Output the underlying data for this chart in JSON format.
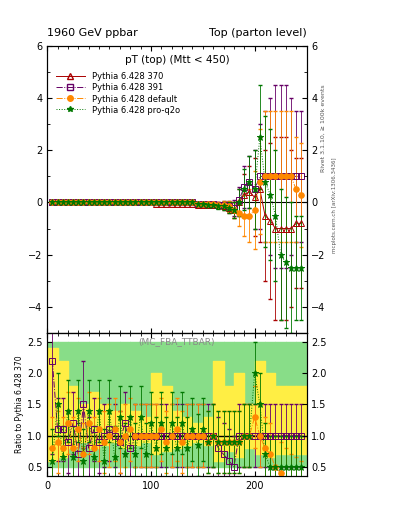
{
  "title_left": "1960 GeV ppbar",
  "title_right": "Top (parton level)",
  "main_title": "pT (top) (Mtt < 450)",
  "watermark": "(MC_FBA_TTBAR)",
  "rivet_label": "Rivet 3.1.10, ≥ 100k events",
  "mcplots_label": "mcplots.cern.ch [arXiv:1306.3436]",
  "ylabel_ratio": "Ratio to Pythia 6.428 370",
  "ylim_main": [
    -5,
    6
  ],
  "ylim_ratio": [
    0.35,
    2.65
  ],
  "yticks_main": [
    -4,
    -2,
    0,
    2,
    4,
    6
  ],
  "yticks_ratio": [
    0.5,
    1.0,
    1.5,
    2.0,
    2.5
  ],
  "xlim": [
    0,
    250
  ],
  "xticks": [
    0,
    100,
    200
  ],
  "series": [
    {
      "label": "Pythia 6.428 370",
      "color": "#aa0000",
      "marker": "^",
      "linestyle": "-",
      "markersize": 4,
      "fillstyle": "none",
      "x": [
        5,
        10,
        15,
        20,
        25,
        30,
        35,
        40,
        45,
        50,
        55,
        60,
        65,
        70,
        75,
        80,
        85,
        90,
        95,
        100,
        105,
        110,
        115,
        120,
        125,
        130,
        135,
        140,
        145,
        150,
        155,
        160,
        165,
        170,
        175,
        180,
        185,
        190,
        195,
        200,
        205,
        210,
        215,
        220,
        225,
        230,
        235,
        240,
        245
      ],
      "y": [
        0.0,
        0.0,
        0.0,
        0.0,
        0.0,
        0.0,
        0.0,
        0.0,
        0.0,
        0.0,
        0.0,
        0.0,
        0.0,
        0.0,
        0.0,
        0.0,
        0.0,
        0.0,
        0.0,
        0.0,
        -0.05,
        -0.05,
        -0.05,
        -0.05,
        -0.05,
        -0.05,
        -0.05,
        -0.05,
        -0.1,
        -0.1,
        -0.1,
        -0.1,
        -0.1,
        -0.15,
        -0.2,
        -0.3,
        0.0,
        0.3,
        0.4,
        0.2,
        0.5,
        -0.5,
        -0.7,
        -1.0,
        -1.0,
        -1.0,
        -1.0,
        -0.8,
        -0.8
      ],
      "yerr": [
        0.02,
        0.02,
        0.02,
        0.02,
        0.02,
        0.02,
        0.02,
        0.02,
        0.02,
        0.02,
        0.02,
        0.02,
        0.02,
        0.02,
        0.02,
        0.02,
        0.02,
        0.02,
        0.02,
        0.02,
        0.05,
        0.05,
        0.05,
        0.05,
        0.05,
        0.05,
        0.05,
        0.05,
        0.08,
        0.08,
        0.08,
        0.08,
        0.1,
        0.15,
        0.2,
        0.3,
        0.5,
        0.8,
        1.0,
        1.5,
        2.0,
        2.5,
        3.0,
        3.5,
        3.5,
        3.5,
        3.0,
        2.5,
        2.5
      ]
    },
    {
      "label": "Pythia 6.428 391",
      "color": "#660066",
      "marker": "s",
      "linestyle": "-.",
      "markersize": 4,
      "fillstyle": "none",
      "x": [
        5,
        10,
        15,
        20,
        25,
        30,
        35,
        40,
        45,
        50,
        55,
        60,
        65,
        70,
        75,
        80,
        85,
        90,
        95,
        100,
        105,
        110,
        115,
        120,
        125,
        130,
        135,
        140,
        145,
        150,
        155,
        160,
        165,
        170,
        175,
        180,
        185,
        190,
        195,
        200,
        205,
        210,
        215,
        220,
        225,
        230,
        235,
        240,
        245
      ],
      "y": [
        0.0,
        0.0,
        0.0,
        0.0,
        0.0,
        0.0,
        0.0,
        0.0,
        0.0,
        0.0,
        0.0,
        0.0,
        0.0,
        0.0,
        0.0,
        0.0,
        0.0,
        0.0,
        0.0,
        0.0,
        0.0,
        0.0,
        0.0,
        0.0,
        0.0,
        0.0,
        0.0,
        0.0,
        -0.05,
        -0.05,
        -0.05,
        -0.05,
        -0.1,
        -0.1,
        -0.15,
        -0.2,
        0.1,
        0.6,
        0.8,
        0.5,
        1.0,
        1.0,
        1.0,
        1.0,
        1.0,
        1.0,
        1.0,
        1.0,
        1.0
      ],
      "yerr": [
        0.02,
        0.02,
        0.02,
        0.02,
        0.02,
        0.02,
        0.02,
        0.02,
        0.02,
        0.02,
        0.02,
        0.02,
        0.02,
        0.02,
        0.02,
        0.02,
        0.02,
        0.02,
        0.02,
        0.02,
        0.05,
        0.05,
        0.05,
        0.05,
        0.05,
        0.05,
        0.05,
        0.05,
        0.08,
        0.08,
        0.08,
        0.08,
        0.1,
        0.15,
        0.2,
        0.3,
        0.5,
        0.8,
        1.0,
        1.5,
        2.0,
        2.5,
        3.0,
        3.5,
        3.5,
        3.5,
        3.0,
        2.5,
        2.5
      ]
    },
    {
      "label": "Pythia 6.428 default",
      "color": "#ff8800",
      "marker": "o",
      "linestyle": "-.",
      "markersize": 4,
      "fillstyle": "full",
      "x": [
        5,
        10,
        15,
        20,
        25,
        30,
        35,
        40,
        45,
        50,
        55,
        60,
        65,
        70,
        75,
        80,
        85,
        90,
        95,
        100,
        105,
        110,
        115,
        120,
        125,
        130,
        135,
        140,
        145,
        150,
        155,
        160,
        165,
        170,
        175,
        180,
        185,
        190,
        195,
        200,
        205,
        210,
        215,
        220,
        225,
        230,
        235,
        240,
        245
      ],
      "y": [
        0.0,
        0.0,
        0.0,
        0.0,
        0.0,
        0.0,
        0.0,
        0.0,
        0.0,
        0.0,
        0.0,
        0.0,
        0.0,
        0.0,
        0.0,
        0.0,
        0.0,
        0.0,
        0.0,
        0.0,
        0.0,
        0.0,
        0.0,
        0.0,
        0.0,
        0.0,
        0.0,
        0.0,
        -0.05,
        -0.05,
        -0.05,
        -0.05,
        -0.1,
        -0.1,
        -0.15,
        -0.3,
        -0.4,
        -0.5,
        -0.5,
        -0.3,
        0.8,
        1.0,
        1.0,
        1.0,
        1.0,
        1.0,
        1.0,
        0.5,
        0.3
      ],
      "yerr": [
        0.02,
        0.02,
        0.02,
        0.02,
        0.02,
        0.02,
        0.02,
        0.02,
        0.02,
        0.02,
        0.02,
        0.02,
        0.02,
        0.02,
        0.02,
        0.02,
        0.02,
        0.02,
        0.02,
        0.02,
        0.05,
        0.05,
        0.05,
        0.05,
        0.05,
        0.05,
        0.05,
        0.05,
        0.08,
        0.08,
        0.08,
        0.08,
        0.1,
        0.15,
        0.2,
        0.3,
        0.5,
        0.8,
        1.0,
        1.5,
        2.0,
        2.5,
        2.5,
        2.5,
        2.5,
        2.5,
        2.5,
        2.0,
        2.0
      ]
    },
    {
      "label": "Pythia 6.428 pro-q2o",
      "color": "#007700",
      "marker": "*",
      "linestyle": ":",
      "markersize": 5,
      "fillstyle": "full",
      "x": [
        5,
        10,
        15,
        20,
        25,
        30,
        35,
        40,
        45,
        50,
        55,
        60,
        65,
        70,
        75,
        80,
        85,
        90,
        95,
        100,
        105,
        110,
        115,
        120,
        125,
        130,
        135,
        140,
        145,
        150,
        155,
        160,
        165,
        170,
        175,
        180,
        185,
        190,
        195,
        200,
        205,
        210,
        215,
        220,
        225,
        230,
        235,
        240,
        245
      ],
      "y": [
        0.0,
        0.0,
        0.0,
        0.0,
        0.0,
        0.0,
        0.0,
        0.0,
        0.0,
        0.0,
        0.0,
        0.0,
        0.0,
        0.0,
        0.0,
        0.0,
        0.0,
        0.0,
        0.0,
        0.0,
        0.0,
        0.0,
        0.0,
        0.0,
        0.0,
        0.0,
        0.0,
        0.0,
        -0.05,
        -0.05,
        -0.1,
        -0.1,
        -0.15,
        -0.15,
        -0.2,
        -0.3,
        0.0,
        0.5,
        0.8,
        0.5,
        2.5,
        0.8,
        0.3,
        -0.5,
        -2.0,
        -2.3,
        -2.5,
        -2.5,
        -2.5
      ],
      "yerr": [
        0.02,
        0.02,
        0.02,
        0.02,
        0.02,
        0.02,
        0.02,
        0.02,
        0.02,
        0.02,
        0.02,
        0.02,
        0.02,
        0.02,
        0.02,
        0.02,
        0.02,
        0.02,
        0.02,
        0.02,
        0.05,
        0.05,
        0.05,
        0.05,
        0.05,
        0.05,
        0.05,
        0.05,
        0.08,
        0.08,
        0.08,
        0.08,
        0.1,
        0.15,
        0.2,
        0.3,
        0.5,
        0.8,
        1.0,
        1.5,
        2.0,
        2.5,
        2.5,
        2.5,
        2.5,
        2.5,
        2.5,
        2.0,
        2.0
      ]
    }
  ],
  "ratio_391_x": [
    5,
    10,
    15,
    20,
    25,
    30,
    35,
    40,
    45,
    50,
    55,
    60,
    65,
    70,
    75,
    80,
    85,
    90,
    95,
    100,
    105,
    110,
    115,
    120,
    125,
    130,
    135,
    140,
    145,
    150,
    155,
    160,
    165,
    170,
    175,
    180,
    185,
    190,
    195,
    200,
    205,
    210,
    215,
    220,
    225,
    230,
    235,
    240,
    245
  ],
  "ratio_391_y": [
    2.2,
    1.1,
    1.1,
    0.9,
    1.2,
    0.7,
    1.5,
    0.8,
    1.1,
    0.9,
    1.0,
    1.1,
    1.0,
    0.9,
    1.2,
    0.8,
    1.0,
    1.0,
    1.0,
    1.0,
    1.0,
    1.0,
    1.0,
    1.0,
    1.0,
    1.0,
    1.0,
    1.0,
    1.0,
    1.0,
    1.0,
    1.0,
    0.8,
    0.7,
    0.6,
    0.5,
    1.0,
    1.0,
    1.0,
    1.0,
    1.0,
    1.0,
    1.0,
    1.0,
    1.0,
    1.0,
    1.0,
    1.0,
    1.0
  ],
  "ratio_391_yerr": [
    1.5,
    0.5,
    0.5,
    0.5,
    0.5,
    0.5,
    0.7,
    0.5,
    0.5,
    0.5,
    0.5,
    0.5,
    0.5,
    0.5,
    0.5,
    0.5,
    0.5,
    0.5,
    0.5,
    0.5,
    0.5,
    0.5,
    0.5,
    0.5,
    0.5,
    0.5,
    0.5,
    0.5,
    0.5,
    0.5,
    0.5,
    0.5,
    0.5,
    0.5,
    0.5,
    0.5,
    0.5,
    0.5,
    0.5,
    0.5,
    0.5,
    0.5,
    0.5,
    0.5,
    0.5,
    0.5,
    0.5,
    0.5,
    0.5
  ],
  "ratio_def_x": [
    5,
    10,
    15,
    20,
    25,
    30,
    35,
    40,
    45,
    50,
    55,
    60,
    65,
    70,
    75,
    80,
    85,
    90,
    95,
    100,
    105,
    110,
    115,
    120,
    125,
    130,
    135,
    140,
    145,
    150,
    155,
    160,
    165,
    170,
    175,
    180,
    185,
    190,
    195,
    200,
    205,
    210,
    215,
    220,
    225,
    230,
    235,
    240,
    245
  ],
  "ratio_def_y": [
    0.8,
    0.9,
    0.8,
    1.2,
    0.8,
    1.1,
    0.7,
    1.2,
    0.8,
    1.1,
    0.9,
    1.0,
    1.1,
    0.9,
    1.0,
    1.1,
    1.0,
    1.0,
    1.0,
    1.0,
    1.0,
    1.1,
    0.9,
    1.0,
    1.1,
    0.9,
    1.0,
    1.0,
    1.0,
    1.0,
    0.9,
    1.0,
    0.9,
    0.9,
    0.9,
    0.9,
    0.9,
    1.0,
    1.0,
    1.3,
    1.0,
    0.8,
    0.7,
    0.5,
    0.4,
    0.3,
    0.2,
    0.15,
    0.1
  ],
  "ratio_def_yerr": [
    0.5,
    0.5,
    0.5,
    0.5,
    0.5,
    0.5,
    0.5,
    0.5,
    0.5,
    0.5,
    0.5,
    0.5,
    0.5,
    0.5,
    0.5,
    0.5,
    0.5,
    0.5,
    0.5,
    0.5,
    0.5,
    0.5,
    0.5,
    0.5,
    0.5,
    0.5,
    0.5,
    0.5,
    0.5,
    0.5,
    0.5,
    0.5,
    0.5,
    0.5,
    0.5,
    0.5,
    0.5,
    0.5,
    0.5,
    0.5,
    0.5,
    0.5,
    0.5,
    0.5,
    0.5,
    0.5,
    0.5,
    0.5,
    0.5
  ],
  "ratio_q2o_x": [
    5,
    10,
    15,
    20,
    25,
    30,
    35,
    40,
    45,
    50,
    55,
    60,
    65,
    70,
    75,
    80,
    85,
    90,
    95,
    100,
    105,
    110,
    115,
    120,
    125,
    130,
    135,
    140,
    145,
    150,
    155,
    160,
    165,
    170,
    175,
    180,
    185,
    190,
    195,
    200,
    205,
    210,
    215,
    220,
    225,
    230,
    235,
    240,
    245
  ],
  "ratio_q2o_y": [
    0.6,
    1.5,
    0.65,
    1.4,
    0.65,
    1.4,
    0.6,
    1.4,
    0.65,
    1.4,
    0.6,
    1.4,
    0.65,
    1.3,
    0.7,
    1.3,
    0.7,
    1.3,
    0.7,
    1.2,
    0.8,
    1.2,
    0.8,
    1.2,
    0.8,
    1.2,
    0.8,
    1.1,
    0.85,
    1.1,
    0.9,
    1.0,
    0.9,
    0.9,
    0.9,
    0.9,
    0.9,
    1.0,
    1.0,
    2.0,
    1.5,
    0.7,
    0.5,
    0.5,
    0.5,
    0.5,
    0.5,
    0.5,
    0.5
  ],
  "ratio_q2o_yerr": [
    0.5,
    0.5,
    0.5,
    0.5,
    0.5,
    0.5,
    0.5,
    0.5,
    0.5,
    0.5,
    0.5,
    0.5,
    0.5,
    0.5,
    0.5,
    0.5,
    0.5,
    0.5,
    0.5,
    0.5,
    0.5,
    0.5,
    0.5,
    0.5,
    0.5,
    0.5,
    0.5,
    0.5,
    0.5,
    0.5,
    0.5,
    0.5,
    0.5,
    0.5,
    0.5,
    0.5,
    0.5,
    0.5,
    0.5,
    0.5,
    0.5,
    0.5,
    0.5,
    0.5,
    0.5,
    0.5,
    0.5,
    0.5,
    0.5
  ],
  "green_band_bins": [
    0,
    10,
    20,
    30,
    40,
    50,
    60,
    70,
    80,
    90,
    100,
    110,
    120,
    130,
    140,
    150,
    160,
    170,
    180,
    190,
    200,
    210,
    220,
    230,
    240,
    250
  ],
  "green_band_lo": [
    0.5,
    0.5,
    0.5,
    0.5,
    0.5,
    0.5,
    0.5,
    0.5,
    0.5,
    0.5,
    0.5,
    0.5,
    0.5,
    0.5,
    0.5,
    0.5,
    0.5,
    0.5,
    0.5,
    0.5,
    0.5,
    0.5,
    0.5,
    0.5,
    0.5
  ],
  "green_band_hi": [
    2.5,
    2.5,
    2.5,
    2.5,
    2.5,
    2.5,
    2.5,
    2.5,
    2.5,
    2.5,
    2.5,
    2.5,
    2.5,
    2.5,
    2.5,
    2.5,
    2.5,
    2.5,
    2.5,
    2.5,
    2.5,
    2.5,
    2.5,
    2.5,
    2.5
  ],
  "yellow_band_bins": [
    0,
    10,
    20,
    30,
    40,
    50,
    60,
    70,
    80,
    90,
    100,
    110,
    120,
    130,
    140,
    150,
    160,
    170,
    180,
    190,
    200,
    210,
    220,
    230,
    240,
    250
  ],
  "yellow_band_lo": [
    0.6,
    0.65,
    0.8,
    0.9,
    0.8,
    0.85,
    0.9,
    0.8,
    0.85,
    0.9,
    0.7,
    0.75,
    0.8,
    0.85,
    0.9,
    0.85,
    0.6,
    0.75,
    0.65,
    0.8,
    0.7,
    0.65,
    0.7,
    0.7,
    0.7
  ],
  "yellow_band_hi": [
    2.4,
    2.2,
    1.8,
    1.5,
    1.7,
    1.5,
    1.4,
    1.5,
    1.4,
    1.3,
    2.0,
    1.8,
    1.4,
    1.3,
    1.2,
    1.3,
    2.2,
    1.8,
    2.0,
    1.5,
    2.2,
    2.0,
    1.8,
    1.8,
    1.8
  ]
}
